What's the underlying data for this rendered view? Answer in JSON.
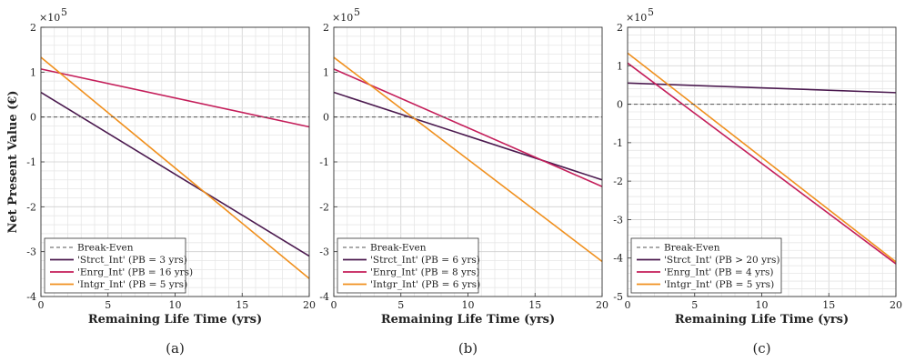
{
  "colors": {
    "break_even": "#555555",
    "strct": "#4b1a4f",
    "enrg": "#c41e5a",
    "intgr": "#f0901e"
  },
  "chart_data": [
    {
      "type": "line",
      "caption": "(a)",
      "xlabel": "Remaining Life Time (yrs)",
      "ylabel": "Net Present Value (€)",
      "y_multiplier": "×10",
      "y_multiplier_exp": "5",
      "xlim": [
        0,
        20
      ],
      "ylim": [
        -4,
        2
      ],
      "xticks": [
        0,
        5,
        10,
        15,
        20
      ],
      "yticks": [
        -4,
        -3,
        -2,
        -1,
        0,
        1,
        2
      ],
      "grid": true,
      "legend_placement": "bottom-left",
      "break_even_label": "Break-Even",
      "series": [
        {
          "name": "'Strct_Int' (PB = 3 yrs)",
          "color_key": "strct",
          "x": [
            0,
            20
          ],
          "y": [
            0.55,
            -3.1
          ]
        },
        {
          "name": "'Enrg_Int' (PB = 16 yrs)",
          "color_key": "enrg",
          "x": [
            0,
            20
          ],
          "y": [
            1.07,
            -0.22
          ]
        },
        {
          "name": "'Intgr_Int' (PB = 5 yrs)",
          "color_key": "intgr",
          "x": [
            0,
            20
          ],
          "y": [
            1.33,
            -3.6
          ]
        }
      ]
    },
    {
      "type": "line",
      "caption": "(b)",
      "xlabel": "Remaining Life Time (yrs)",
      "ylabel": "",
      "y_multiplier": "×10",
      "y_multiplier_exp": "5",
      "xlim": [
        0,
        20
      ],
      "ylim": [
        -4,
        2
      ],
      "xticks": [
        0,
        5,
        10,
        15,
        20
      ],
      "yticks": [
        -4,
        -3,
        -2,
        -1,
        0,
        1,
        2
      ],
      "grid": true,
      "legend_placement": "bottom-left",
      "break_even_label": "Break-Even",
      "series": [
        {
          "name": "'Strct_Int' (PB = 6 yrs)",
          "color_key": "strct",
          "x": [
            0,
            20
          ],
          "y": [
            0.55,
            -1.4
          ]
        },
        {
          "name": "'Enrg_Int' (PB = 8 yrs)",
          "color_key": "enrg",
          "x": [
            0,
            20
          ],
          "y": [
            1.07,
            -1.55
          ]
        },
        {
          "name": "'Intgr_Int' (PB = 6 yrs)",
          "color_key": "intgr",
          "x": [
            0,
            20
          ],
          "y": [
            1.33,
            -3.22
          ]
        }
      ]
    },
    {
      "type": "line",
      "caption": "(c)",
      "xlabel": "Remaining Life Time (yrs)",
      "ylabel": "",
      "y_multiplier": "×10",
      "y_multiplier_exp": "5",
      "xlim": [
        0,
        20
      ],
      "ylim": [
        -5,
        2
      ],
      "xticks": [
        0,
        5,
        10,
        15,
        20
      ],
      "yticks": [
        -5,
        -4,
        -3,
        -2,
        -1,
        0,
        1,
        2
      ],
      "grid": true,
      "legend_placement": "bottom-left",
      "break_even_label": "Break-Even",
      "series": [
        {
          "name": "'Strct_Int' (PB > 20 yrs)",
          "color_key": "strct",
          "x": [
            0,
            20
          ],
          "y": [
            0.55,
            0.3
          ]
        },
        {
          "name": "'Enrg_Int' (PB = 4 yrs)",
          "color_key": "enrg",
          "x": [
            0,
            20
          ],
          "y": [
            1.07,
            -4.15
          ]
        },
        {
          "name": "'Intgr_Int' (PB = 5 yrs)",
          "color_key": "intgr",
          "x": [
            0,
            20
          ],
          "y": [
            1.33,
            -4.1
          ]
        }
      ]
    }
  ]
}
